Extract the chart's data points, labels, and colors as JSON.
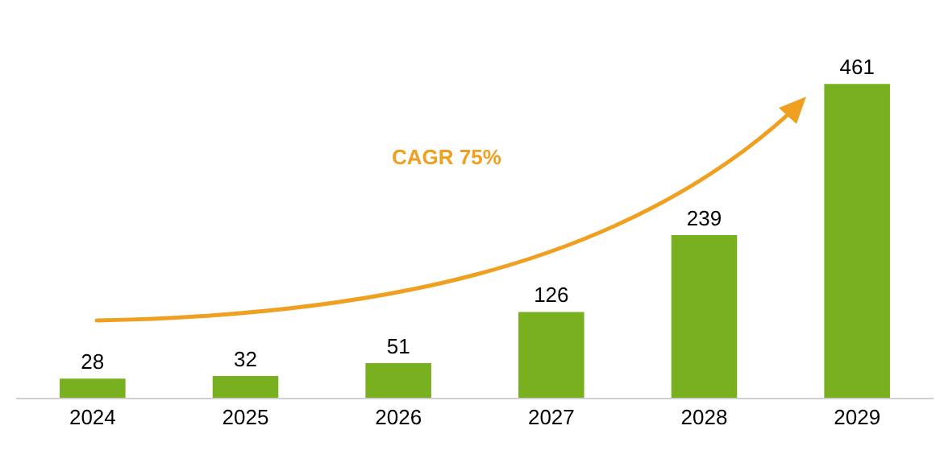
{
  "chart_data": {
    "type": "bar",
    "categories": [
      "2024",
      "2025",
      "2026",
      "2027",
      "2028",
      "2029"
    ],
    "values": [
      28,
      32,
      51,
      126,
      239,
      461
    ],
    "color": "#78b01f",
    "data_labels": true,
    "grid": false,
    "legend": false,
    "annotations": [
      "CAGR 75%"
    ]
  }
}
